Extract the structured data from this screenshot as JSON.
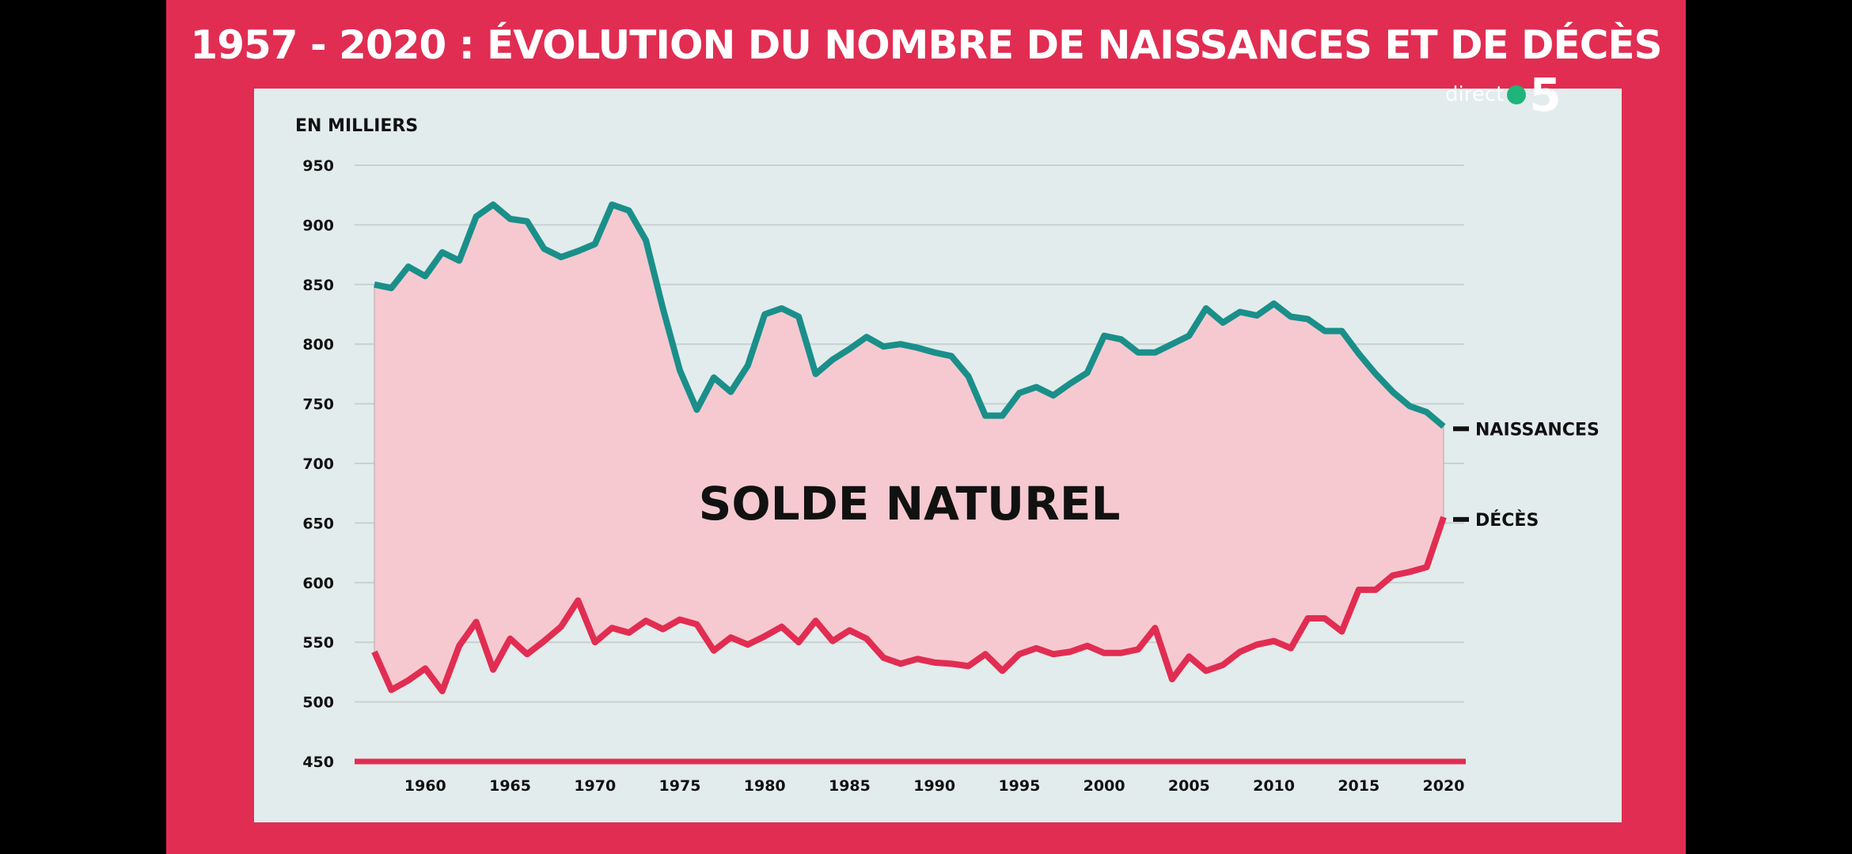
{
  "title": "1957 - 2020 : ÉVOLUTION DU NOMBRE DE NAISSANCES ET DE DÉCÈS",
  "logo": {
    "text": "direct",
    "number": "5"
  },
  "chart_data": {
    "type": "area",
    "title": "1957 - 2020 : ÉVOLUTION DU NOMBRE DE NAISSANCES ET DE DÉCÈS",
    "ylabel": "EN MILLIERS",
    "xlabel": "",
    "ylim": [
      450,
      950
    ],
    "xlim": [
      1957,
      2020
    ],
    "yticks": [
      950,
      900,
      850,
      800,
      750,
      700,
      650,
      600,
      550,
      500,
      450
    ],
    "xticks": [
      1960,
      1965,
      1970,
      1975,
      1980,
      1985,
      1990,
      1995,
      2000,
      2005,
      2010,
      2015,
      2020
    ],
    "grid": true,
    "annotation": "SOLDE NATUREL",
    "x_start": 1957,
    "series": [
      {
        "name": "NAISSANCES",
        "color": "#1a8f8a",
        "values": [
          850,
          847,
          865,
          857,
          877,
          870,
          907,
          917,
          905,
          903,
          880,
          873,
          878,
          884,
          917,
          912,
          887,
          830,
          778,
          745,
          772,
          760,
          782,
          825,
          830,
          823,
          775,
          787,
          796,
          806,
          798,
          800,
          797,
          793,
          790,
          773,
          740,
          740,
          759,
          764,
          757,
          767,
          776,
          807,
          804,
          793,
          793,
          800,
          807,
          830,
          818,
          827,
          824,
          834,
          823,
          821,
          811,
          811,
          792,
          775,
          760,
          748,
          743,
          731
        ]
      },
      {
        "name": "DÉCÈS",
        "color": "#e12d52",
        "values": [
          542,
          510,
          518,
          528,
          509,
          547,
          567,
          527,
          553,
          540,
          551,
          563,
          585,
          550,
          562,
          558,
          568,
          561,
          569,
          565,
          543,
          554,
          548,
          555,
          563,
          550,
          568,
          551,
          560,
          553,
          537,
          532,
          536,
          533,
          532,
          530,
          540,
          526,
          540,
          545,
          540,
          542,
          547,
          541,
          541,
          544,
          562,
          519,
          538,
          526,
          531,
          542,
          548,
          551,
          545,
          570,
          570,
          559,
          594,
          594,
          606,
          609,
          613,
          655
        ]
      }
    ],
    "fill_color": "#f6c9d0",
    "background": "#e2ecec"
  }
}
